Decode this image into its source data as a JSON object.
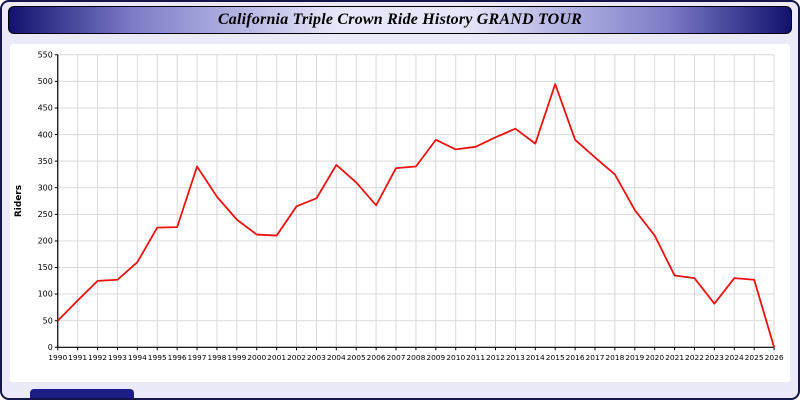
{
  "window": {
    "title": "California Triple Crown Ride History GRAND TOUR"
  },
  "chart_data": {
    "type": "line",
    "title": "California Triple Crown Ride History GRAND TOUR",
    "xlabel": "",
    "ylabel": "Riders",
    "ylim": [
      0,
      550
    ],
    "ytick_step": 50,
    "grid": true,
    "legend": "none",
    "line_color": "#ee1111",
    "x": [
      1990,
      1991,
      1992,
      1993,
      1994,
      1995,
      1996,
      1997,
      1998,
      1999,
      2000,
      2001,
      2002,
      2003,
      2004,
      2005,
      2006,
      2007,
      2008,
      2009,
      2010,
      2011,
      2012,
      2013,
      2014,
      2015,
      2016,
      2017,
      2018,
      2019,
      2020,
      2021,
      2022,
      2023,
      2024,
      2025,
      2026
    ],
    "values": [
      50,
      88,
      125,
      127,
      160,
      225,
      226,
      340,
      283,
      240,
      212,
      210,
      265,
      280,
      343,
      310,
      267,
      337,
      340,
      390,
      372,
      377,
      395,
      411,
      383,
      495,
      390,
      357,
      325,
      258,
      210,
      135,
      130,
      82,
      130,
      127,
      0
    ]
  }
}
